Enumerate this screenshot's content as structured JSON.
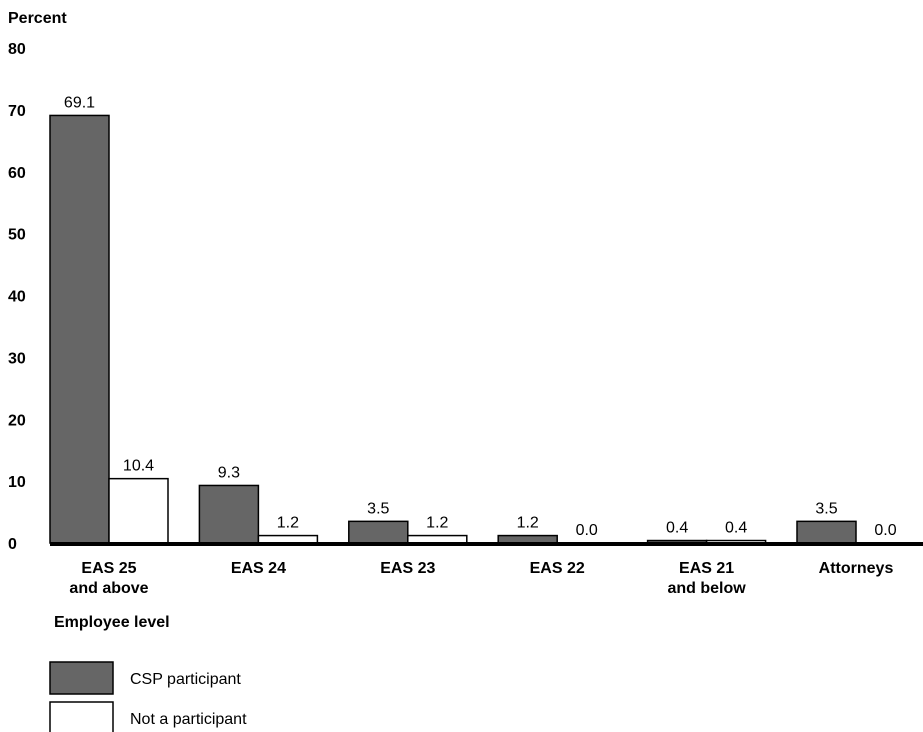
{
  "chart_data": {
    "type": "bar",
    "ylabel": "Percent",
    "xlabel": "Employee level",
    "ylim": [
      0,
      80
    ],
    "yticks": [
      0,
      10,
      20,
      30,
      40,
      50,
      60,
      70,
      80
    ],
    "grid": false,
    "legend_position": "bottom-left",
    "categories": [
      [
        "EAS 25",
        "and above"
      ],
      [
        "EAS 24"
      ],
      [
        "EAS 23"
      ],
      [
        "EAS 22"
      ],
      [
        "EAS 21",
        "and below"
      ],
      [
        "Attorneys"
      ]
    ],
    "series": [
      {
        "name": "CSP participant",
        "color": "#666666",
        "values": [
          69.1,
          9.3,
          3.5,
          1.2,
          0.4,
          3.5
        ],
        "labels": [
          "69.1",
          "9.3",
          "3.5",
          "1.2",
          "0.4",
          "3.5"
        ]
      },
      {
        "name": "Not a participant",
        "color": "#ffffff",
        "values": [
          10.4,
          1.2,
          1.2,
          0.0,
          0.4,
          0.0
        ],
        "labels": [
          "10.4",
          "1.2",
          "1.2",
          "0.0",
          "0.4",
          "0.0"
        ]
      }
    ]
  }
}
